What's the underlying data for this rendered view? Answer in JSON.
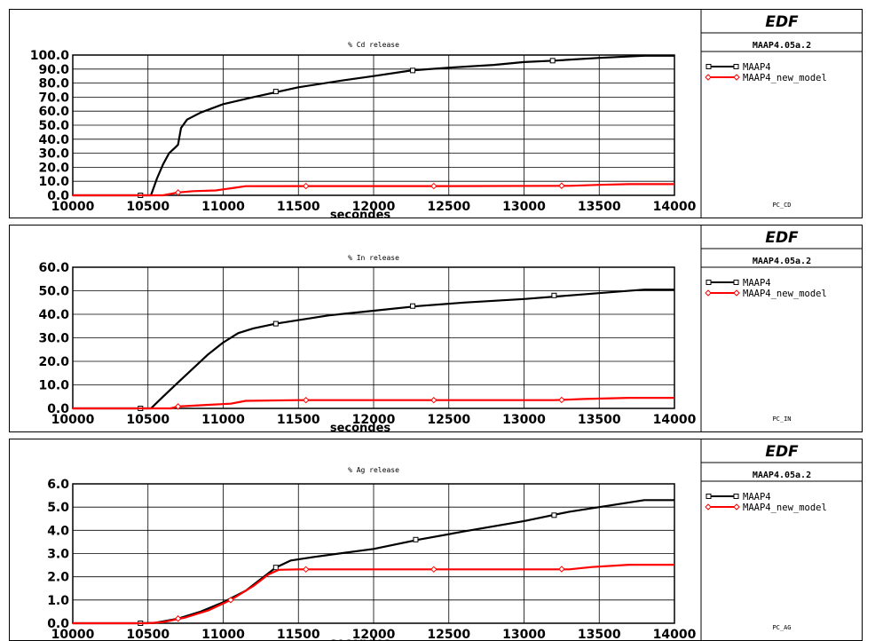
{
  "header": {
    "brand": "EDF",
    "version": "MAAP4.05a.2"
  },
  "colors": {
    "maap4": "#000000",
    "maap4_new_model": "#ff0000"
  },
  "chart_data": [
    {
      "type": "line",
      "title": "% Cd release",
      "xlabel": "secondes",
      "code": "PC_CD",
      "xlim": [
        10000,
        14000
      ],
      "ylim": [
        0,
        100
      ],
      "x_ticks": [
        "10000",
        "10500",
        "11000",
        "11500",
        "12000",
        "12500",
        "13000",
        "13500",
        "14000"
      ],
      "y_ticks": [
        "0.0",
        "10.0",
        "20.0",
        "30.0",
        "40.0",
        "50.0",
        "60.0",
        "70.0",
        "80.0",
        "90.0",
        "100.0"
      ],
      "legend_position": "right",
      "series": [
        {
          "name": "MAAP4",
          "color": "#000000",
          "points": [
            [
              10000,
              0
            ],
            [
              10450,
              0
            ],
            [
              10520,
              0
            ],
            [
              10560,
              12
            ],
            [
              10600,
              22
            ],
            [
              10640,
              30
            ],
            [
              10680,
              34
            ],
            [
              10700,
              36
            ],
            [
              10720,
              48
            ],
            [
              10760,
              54
            ],
            [
              10850,
              59
            ],
            [
              11000,
              65
            ],
            [
              11200,
              70
            ],
            [
              11500,
              77
            ],
            [
              11800,
              82
            ],
            [
              12000,
              85
            ],
            [
              12250,
              89
            ],
            [
              12500,
              91
            ],
            [
              12800,
              93
            ],
            [
              13000,
              95
            ],
            [
              13200,
              96
            ],
            [
              13500,
              98
            ],
            [
              13800,
              99.5
            ],
            [
              14000,
              99.5
            ]
          ],
          "markers": [
            [
              10450,
              0
            ],
            [
              11350,
              74
            ],
            [
              12260,
              89
            ],
            [
              13190,
              96
            ]
          ]
        },
        {
          "name": "MAAP4_new_model",
          "color": "#ff0000",
          "points": [
            [
              10000,
              0
            ],
            [
              10600,
              0
            ],
            [
              10700,
              2
            ],
            [
              10800,
              3
            ],
            [
              10950,
              3.5
            ],
            [
              11050,
              5
            ],
            [
              11150,
              6.5
            ],
            [
              11500,
              6.6
            ],
            [
              12500,
              6.6
            ],
            [
              13300,
              6.8
            ],
            [
              13500,
              7.5
            ],
            [
              13700,
              8
            ],
            [
              14000,
              8
            ]
          ],
          "markers": [
            [
              10700,
              2
            ],
            [
              11550,
              6.6
            ],
            [
              12400,
              6.6
            ],
            [
              13250,
              6.8
            ]
          ]
        }
      ]
    },
    {
      "type": "line",
      "title": "% In release",
      "xlabel": "secondes",
      "code": "PC_IN",
      "xlim": [
        10000,
        14000
      ],
      "ylim": [
        0,
        60
      ],
      "x_ticks": [
        "10000",
        "10500",
        "11000",
        "11500",
        "12000",
        "12500",
        "13000",
        "13500",
        "14000"
      ],
      "y_ticks": [
        "0.0",
        "10.0",
        "20.0",
        "30.0",
        "40.0",
        "50.0",
        "60.0"
      ],
      "legend_position": "right",
      "series": [
        {
          "name": "MAAP4",
          "color": "#000000",
          "points": [
            [
              10000,
              0
            ],
            [
              10450,
              0
            ],
            [
              10520,
              0
            ],
            [
              10600,
              5
            ],
            [
              10700,
              11
            ],
            [
              10800,
              17
            ],
            [
              10900,
              23
            ],
            [
              11000,
              28
            ],
            [
              11100,
              32
            ],
            [
              11200,
              34
            ],
            [
              11350,
              36
            ],
            [
              11500,
              37.5
            ],
            [
              11700,
              39.5
            ],
            [
              12000,
              41.5
            ],
            [
              12300,
              43.5
            ],
            [
              12600,
              45
            ],
            [
              13000,
              46.5
            ],
            [
              13300,
              48
            ],
            [
              13600,
              49.5
            ],
            [
              13800,
              50.5
            ],
            [
              14000,
              50.5
            ]
          ],
          "markers": [
            [
              10450,
              0
            ],
            [
              11350,
              36
            ],
            [
              12260,
              43.5
            ],
            [
              13200,
              48
            ]
          ]
        },
        {
          "name": "MAAP4_new_model",
          "color": "#ff0000",
          "points": [
            [
              10000,
              0
            ],
            [
              10650,
              0
            ],
            [
              10700,
              0.8
            ],
            [
              10900,
              1.5
            ],
            [
              11050,
              2
            ],
            [
              11150,
              3.2
            ],
            [
              11500,
              3.5
            ],
            [
              13200,
              3.5
            ],
            [
              13400,
              4
            ],
            [
              13700,
              4.5
            ],
            [
              14000,
              4.5
            ]
          ],
          "markers": [
            [
              10700,
              0.8
            ],
            [
              11550,
              3.5
            ],
            [
              12400,
              3.5
            ],
            [
              13250,
              3.6
            ]
          ]
        }
      ]
    },
    {
      "type": "line",
      "title": "% Ag release",
      "xlabel": "secondes",
      "code": "PC_AG",
      "xlim": [
        10000,
        14000
      ],
      "ylim": [
        0,
        6
      ],
      "x_ticks": [
        "10000",
        "10500",
        "11000",
        "11500",
        "12000",
        "12500",
        "13000",
        "13500",
        "14000"
      ],
      "y_ticks": [
        "0.0",
        "1.0",
        "2.0",
        "3.0",
        "4.0",
        "5.0",
        "6.0"
      ],
      "legend_position": "right",
      "series": [
        {
          "name": "MAAP4",
          "color": "#000000",
          "points": [
            [
              10000,
              0
            ],
            [
              10450,
              0
            ],
            [
              10550,
              0.02
            ],
            [
              10700,
              0.2
            ],
            [
              10850,
              0.5
            ],
            [
              11000,
              0.9
            ],
            [
              11150,
              1.4
            ],
            [
              11250,
              1.9
            ],
            [
              11350,
              2.4
            ],
            [
              11450,
              2.7
            ],
            [
              11600,
              2.85
            ],
            [
              12000,
              3.2
            ],
            [
              12300,
              3.6
            ],
            [
              12600,
              3.95
            ],
            [
              13000,
              4.4
            ],
            [
              13300,
              4.8
            ],
            [
              13600,
              5.1
            ],
            [
              13800,
              5.3
            ],
            [
              14000,
              5.3
            ]
          ],
          "markers": [
            [
              10450,
              0
            ],
            [
              11350,
              2.4
            ],
            [
              12280,
              3.6
            ],
            [
              13200,
              4.65
            ]
          ]
        },
        {
          "name": "MAAP4_new_model",
          "color": "#ff0000",
          "points": [
            [
              10000,
              0
            ],
            [
              10500,
              0
            ],
            [
              10600,
              0.05
            ],
            [
              10750,
              0.25
            ],
            [
              10900,
              0.55
            ],
            [
              11050,
              1.0
            ],
            [
              11200,
              1.6
            ],
            [
              11300,
              2.1
            ],
            [
              11370,
              2.3
            ],
            [
              11500,
              2.32
            ],
            [
              13300,
              2.32
            ],
            [
              13450,
              2.42
            ],
            [
              13700,
              2.52
            ],
            [
              14000,
              2.52
            ]
          ],
          "markers": [
            [
              10700,
              0.2
            ],
            [
              11050,
              1.0
            ],
            [
              11550,
              2.32
            ],
            [
              12400,
              2.32
            ],
            [
              13250,
              2.33
            ]
          ]
        }
      ]
    }
  ]
}
